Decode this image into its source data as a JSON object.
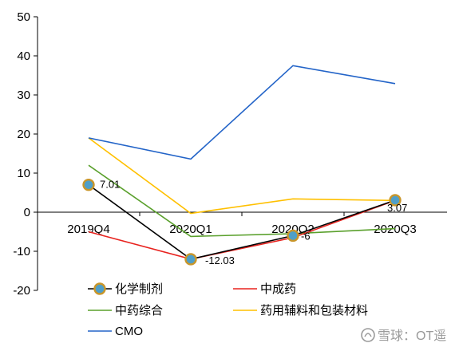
{
  "chart_data": {
    "type": "line",
    "categories": [
      "2019Q4",
      "2020Q1",
      "2020Q2",
      "2020Q3"
    ],
    "ylim": [
      -20,
      50
    ],
    "yticks": [
      -20,
      -10,
      0,
      10,
      20,
      30,
      40,
      50
    ],
    "grid": false,
    "legend_position": "bottom",
    "series": [
      {
        "name": "化学制剂",
        "values": [
          7.01,
          -12.03,
          -6,
          3.07
        ],
        "color": "#000000",
        "marker": true,
        "marker_fill": "#4f9fc8",
        "marker_edge": "#c9962a",
        "data_labels": [
          "7.01",
          "-12.03",
          "-6",
          "3.07"
        ]
      },
      {
        "name": "中成药",
        "values": [
          -5,
          -12,
          -6.5,
          3
        ],
        "color": "#e8231f",
        "marker": false
      },
      {
        "name": "中药综合",
        "values": [
          12,
          -6.2,
          -5.5,
          -4.2
        ],
        "color": "#5aa02c",
        "marker": false
      },
      {
        "name": "药用辅料和包装材料",
        "values": [
          19,
          -0.3,
          3.4,
          3
        ],
        "color": "#ffc000",
        "marker": false
      },
      {
        "name": "CMO",
        "values": [
          19,
          13.6,
          37.5,
          32.9
        ],
        "color": "#2364c8",
        "marker": false
      }
    ]
  },
  "watermark": "雪球：OT遥"
}
